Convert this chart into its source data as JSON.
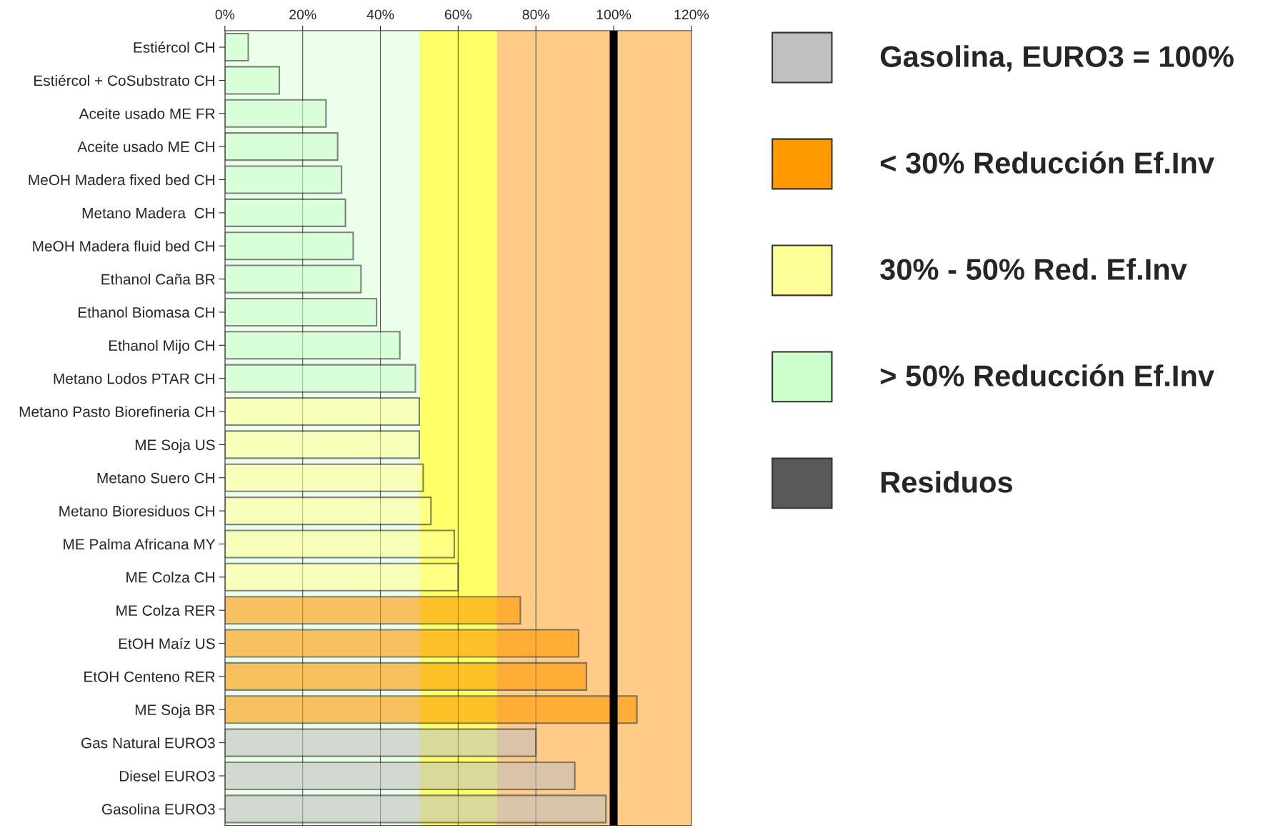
{
  "chart_data": {
    "type": "bar",
    "orientation": "horizontal",
    "categories": [
      "Estiércol CH",
      "Estiércol + CoSubstrato CH",
      "Aceite usado ME FR",
      "Aceite usado ME CH",
      "MeOH Madera fixed bed CH",
      "Metano Madera  CH",
      "MeOH Madera fluid bed CH",
      "Ethanol Caña BR",
      "Ethanol Biomasa CH",
      "Ethanol Mijo CH",
      "Metano Lodos PTAR CH",
      "Metano Pasto Biorefineria CH",
      "ME Soja US",
      "Metano Suero CH",
      "Metano Bioresiduos CH",
      "ME Palma Africana MY",
      "ME Colza CH",
      "ME Colza RER",
      "EtOH Maíz US",
      "EtOH Centeno RER",
      "ME Soja BR",
      "Gas Natural EURO3",
      "Diesel EURO3",
      "Gasolina EURO3"
    ],
    "series": [
      {
        "name": "Gasolina, EURO3 = 100%",
        "color": "#c0c0c0",
        "values": [
          null,
          null,
          null,
          null,
          null,
          null,
          null,
          null,
          null,
          null,
          null,
          null,
          null,
          null,
          null,
          null,
          null,
          null,
          null,
          null,
          null,
          80,
          90,
          98
        ]
      },
      {
        "name": "< 30% Reducción Ef.Inv",
        "color": "#ff9900",
        "values": [
          null,
          null,
          null,
          null,
          null,
          null,
          null,
          null,
          null,
          null,
          null,
          null,
          null,
          null,
          null,
          null,
          null,
          76,
          91,
          93,
          106,
          null,
          null,
          null
        ]
      },
      {
        "name": "30% - 50% Red. Ef.Inv",
        "color": "#ffff99",
        "values": [
          null,
          null,
          null,
          null,
          null,
          null,
          null,
          null,
          null,
          null,
          null,
          50,
          50,
          51,
          53,
          59,
          60,
          null,
          null,
          null,
          null,
          null,
          null,
          null
        ]
      },
      {
        "name": "> 50% Reducción Ef.Inv",
        "color": "#ccffcc",
        "values": [
          6,
          14,
          26,
          29,
          30,
          31,
          33,
          35,
          39,
          45,
          49,
          null,
          null,
          null,
          null,
          null,
          null,
          null,
          null,
          null,
          null,
          null,
          null,
          null
        ]
      },
      {
        "name": "Residuos",
        "color": "#595959",
        "values": [
          null,
          null,
          null,
          null,
          null,
          null,
          null,
          null,
          null,
          null,
          null,
          null,
          null,
          null,
          null,
          null,
          null,
          null,
          null,
          null,
          null,
          null,
          null,
          null
        ]
      }
    ],
    "xlim": [
      0,
      120
    ],
    "xticks": [
      {
        "value": 0,
        "label": "0%"
      },
      {
        "value": 20,
        "label": "20%"
      },
      {
        "value": 40,
        "label": "40%"
      },
      {
        "value": 60,
        "label": "60%"
      },
      {
        "value": 80,
        "label": "80%"
      },
      {
        "value": 100,
        "label": "100%"
      },
      {
        "value": 120,
        "label": "120%"
      }
    ],
    "bands": [
      {
        "axis": "x",
        "from": 0,
        "to": 50,
        "color": "#ebffeb"
      },
      {
        "axis": "x",
        "from": 50,
        "to": 70,
        "color": "#ffff66"
      },
      {
        "axis": "x",
        "from": 70,
        "to": 120,
        "color": "#ffcc88"
      }
    ],
    "ref_lines": [
      {
        "axis": "x",
        "value": 100,
        "color": "#000000"
      }
    ],
    "grid": "x",
    "legend": "right"
  }
}
